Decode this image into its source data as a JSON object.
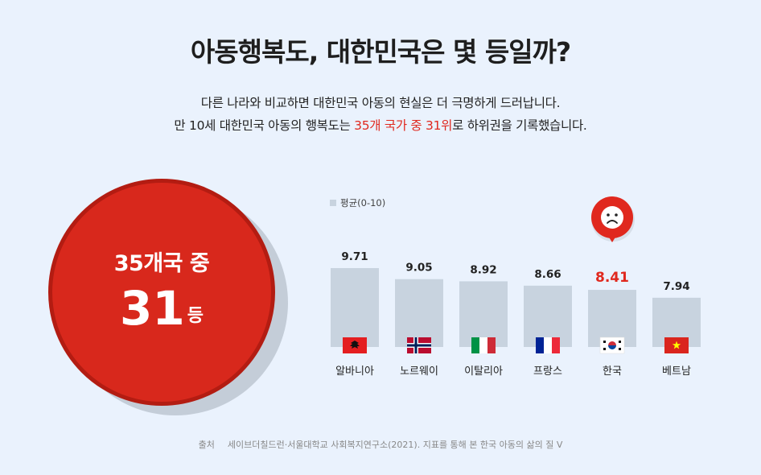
{
  "header": {
    "title": "아동행복도, 대한민국은 몇 등일까?",
    "desc_line1": "다른 나라와 비교하면 대한민국 아동의 현실은 더 극명하게 드러납니다.",
    "desc_line2_pre": "만 10세 대한민국 아동의 행복도는 ",
    "desc_line2_highlight": "35개 국가 중 31위",
    "desc_line2_post": "로 하위권을 기록했습니다."
  },
  "rank_badge": {
    "line1": "35개국 중",
    "number": "31",
    "unit": "등"
  },
  "source": {
    "label": "출처",
    "text": "세이브더칠드런·서울대학교 사회복지연구소(2021). 지표를 통해 본 한국 아동의 삶의 질 V"
  },
  "colors": {
    "accent": "#e0281e",
    "bar": "#c8d3df",
    "background": "#eaf2fd"
  },
  "chart_data": {
    "type": "bar",
    "legend": "평균(0-10)",
    "legend_position": "top-left",
    "categories": [
      "알바니아",
      "노르웨이",
      "이탈리아",
      "프랑스",
      "한국",
      "베트남"
    ],
    "values": [
      9.71,
      9.05,
      8.92,
      8.66,
      8.41,
      7.94
    ],
    "value_labels": [
      "9.71",
      "9.05",
      "8.92",
      "8.66",
      "8.41",
      "7.94"
    ],
    "highlight_index": 4,
    "highlight_icon": "sad-face-icon",
    "flags": [
      "albania-flag-icon",
      "norway-flag-icon",
      "italy-flag-icon",
      "france-flag-icon",
      "korea-flag-icon",
      "vietnam-flag-icon"
    ],
    "ylim": [
      0,
      10
    ],
    "grid": false
  }
}
